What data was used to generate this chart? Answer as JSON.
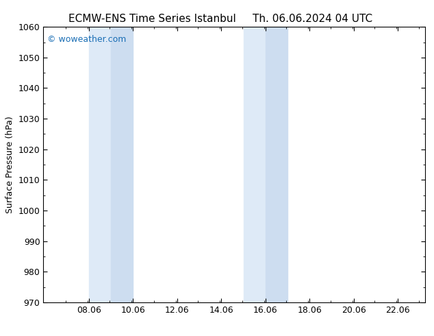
{
  "title_left": "ECMW-ENS Time Series Istanbul",
  "title_right": "Th. 06.06.2024 04 UTC",
  "ylabel": "Surface Pressure (hPa)",
  "ylim": [
    970,
    1060
  ],
  "yticks": [
    970,
    980,
    990,
    1000,
    1010,
    1020,
    1030,
    1040,
    1050,
    1060
  ],
  "xlim_start": 6.0,
  "xlim_end": 23.3,
  "xtick_labels": [
    "08.06",
    "10.06",
    "12.06",
    "14.06",
    "16.06",
    "18.06",
    "20.06",
    "22.06"
  ],
  "xtick_positions": [
    8.06,
    10.06,
    12.06,
    14.06,
    16.06,
    18.06,
    20.06,
    22.06
  ],
  "shaded_bands": [
    {
      "xmin": 8.06,
      "xmid": 9.06,
      "xmax": 10.06
    },
    {
      "xmin": 15.06,
      "xmid": 16.06,
      "xmax": 17.06
    }
  ],
  "shade_color_light": "#deeaf7",
  "shade_color_dark": "#cdddf0",
  "background_color": "#ffffff",
  "watermark_text": "© woweather.com",
  "watermark_color": "#1a6eb5",
  "title_fontsize": 11,
  "ylabel_fontsize": 9,
  "tick_fontsize": 9,
  "watermark_fontsize": 9
}
